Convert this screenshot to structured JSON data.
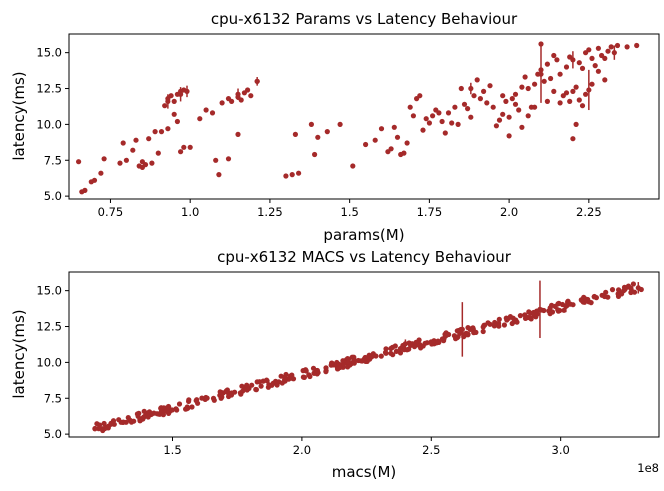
{
  "chart_data": [
    {
      "type": "scatter",
      "title": "cpu-x6132 Params vs Latency Behaviour",
      "xlabel": "params(M)",
      "ylabel": "latency(ms)",
      "xlim": [
        0.62,
        2.47
      ],
      "ylim": [
        4.8,
        16.3
      ],
      "xticks": [
        0.75,
        1.0,
        1.25,
        1.5,
        1.75,
        2.0,
        2.25
      ],
      "xtick_labels": [
        "0.75",
        "1.0",
        "1.25",
        "1.5",
        "1.75",
        "2.0",
        "2.25"
      ],
      "yticks": [
        5.0,
        7.5,
        10.0,
        12.5,
        15.0
      ],
      "ytick_labels": [
        "5.0",
        "7.5",
        "10.0",
        "12.5",
        "15.0"
      ],
      "offset_label": "",
      "grid": false,
      "marker_color": "#a52a2a",
      "points": [
        [
          0.66,
          5.3
        ],
        [
          0.67,
          5.4
        ],
        [
          0.65,
          7.4
        ],
        [
          0.69,
          6.0
        ],
        [
          0.7,
          6.1
        ],
        [
          0.72,
          6.6
        ],
        [
          0.73,
          7.6
        ],
        [
          0.78,
          7.3
        ],
        [
          0.79,
          8.7
        ],
        [
          0.8,
          7.5
        ],
        [
          0.82,
          8.2
        ],
        [
          0.83,
          8.9
        ],
        [
          0.84,
          7.1
        ],
        [
          0.85,
          7.0
        ],
        [
          0.85,
          7.4
        ],
        [
          0.86,
          7.2
        ],
        [
          0.87,
          9.0
        ],
        [
          0.88,
          7.3
        ],
        [
          0.89,
          9.5
        ],
        [
          0.9,
          8.0
        ],
        [
          0.91,
          9.5
        ],
        [
          0.92,
          11.3
        ],
        [
          0.93,
          11.8
        ],
        [
          0.94,
          12.0
        ],
        [
          0.95,
          11.6
        ],
        [
          0.96,
          12.1
        ],
        [
          0.97,
          12.3
        ],
        [
          0.98,
          12.4
        ],
        [
          0.93,
          9.7
        ],
        [
          0.95,
          10.7
        ],
        [
          0.96,
          10.2
        ],
        [
          0.97,
          8.1
        ],
        [
          0.98,
          8.4
        ],
        [
          1.0,
          8.4
        ],
        [
          1.03,
          10.4
        ],
        [
          1.05,
          11.0
        ],
        [
          1.07,
          10.8
        ],
        [
          1.08,
          7.5
        ],
        [
          1.09,
          6.5
        ],
        [
          1.1,
          11.5
        ],
        [
          1.12,
          11.8
        ],
        [
          1.13,
          11.6
        ],
        [
          1.15,
          11.9
        ],
        [
          1.16,
          11.7
        ],
        [
          1.17,
          12.2
        ],
        [
          1.18,
          12.4
        ],
        [
          1.19,
          12.0
        ],
        [
          1.15,
          9.3
        ],
        [
          1.21,
          13.0
        ],
        [
          1.12,
          7.6
        ],
        [
          1.3,
          6.4
        ],
        [
          1.32,
          6.5
        ],
        [
          1.34,
          6.6
        ],
        [
          1.33,
          9.3
        ],
        [
          1.38,
          10.0
        ],
        [
          1.39,
          7.9
        ],
        [
          1.4,
          9.1
        ],
        [
          1.43,
          9.5
        ],
        [
          1.47,
          10.0
        ],
        [
          1.51,
          7.1
        ],
        [
          1.55,
          8.6
        ],
        [
          1.58,
          8.9
        ],
        [
          1.6,
          9.7
        ],
        [
          1.62,
          8.1
        ],
        [
          1.63,
          8.3
        ],
        [
          1.64,
          9.8
        ],
        [
          1.65,
          9.1
        ],
        [
          1.66,
          7.9
        ],
        [
          1.67,
          8.0
        ],
        [
          1.68,
          8.7
        ],
        [
          1.69,
          11.2
        ],
        [
          1.7,
          10.6
        ],
        [
          1.71,
          11.8
        ],
        [
          1.72,
          12.0
        ],
        [
          1.73,
          9.6
        ],
        [
          1.74,
          10.4
        ],
        [
          1.75,
          10.1
        ],
        [
          1.76,
          10.6
        ],
        [
          1.77,
          11.0
        ],
        [
          1.78,
          10.8
        ],
        [
          1.79,
          10.2
        ],
        [
          1.8,
          9.4
        ],
        [
          1.81,
          10.8
        ],
        [
          1.82,
          10.1
        ],
        [
          1.83,
          11.2
        ],
        [
          1.84,
          10.0
        ],
        [
          1.85,
          12.5
        ],
        [
          1.86,
          11.4
        ],
        [
          1.87,
          11.1
        ],
        [
          1.88,
          10.5
        ],
        [
          1.89,
          12.0
        ],
        [
          1.9,
          13.1
        ],
        [
          1.91,
          11.8
        ],
        [
          1.92,
          12.3
        ],
        [
          1.93,
          11.5
        ],
        [
          1.94,
          12.7
        ],
        [
          1.95,
          11.2
        ],
        [
          1.96,
          9.9
        ],
        [
          1.97,
          10.3
        ],
        [
          1.98,
          12.0
        ],
        [
          1.99,
          11.6
        ],
        [
          2.0,
          10.5
        ],
        [
          2.01,
          11.8
        ],
        [
          2.02,
          12.1
        ],
        [
          2.03,
          11.0
        ],
        [
          2.04,
          12.6
        ],
        [
          2.05,
          13.3
        ],
        [
          2.06,
          12.5
        ],
        [
          2.07,
          11.2
        ],
        [
          2.08,
          12.8
        ],
        [
          2.09,
          13.5
        ],
        [
          2.1,
          13.8
        ],
        [
          2.11,
          13.0
        ],
        [
          2.12,
          14.2
        ],
        [
          2.13,
          13.2
        ],
        [
          2.14,
          12.3
        ],
        [
          2.15,
          14.5
        ],
        [
          2.16,
          13.5
        ],
        [
          2.17,
          12.0
        ],
        [
          2.18,
          14.0
        ],
        [
          2.19,
          11.6
        ],
        [
          2.2,
          12.3
        ],
        [
          2.21,
          10.0
        ],
        [
          2.22,
          14.3
        ],
        [
          2.23,
          13.9
        ],
        [
          2.24,
          15.0
        ],
        [
          2.25,
          15.2
        ],
        [
          2.26,
          14.6
        ],
        [
          2.27,
          14.1
        ],
        [
          2.28,
          15.3
        ],
        [
          2.29,
          14.8
        ],
        [
          2.3,
          14.6
        ],
        [
          2.31,
          15.1
        ],
        [
          2.32,
          15.4
        ],
        [
          2.34,
          15.5
        ],
        [
          2.37,
          15.4
        ],
        [
          2.4,
          15.5
        ],
        [
          2.24,
          12.1
        ],
        [
          2.22,
          11.7
        ],
        [
          2.21,
          12.6
        ],
        [
          2.18,
          12.2
        ],
        [
          2.16,
          11.5
        ],
        [
          2.12,
          11.6
        ],
        [
          2.08,
          11.2
        ],
        [
          2.2,
          9.0
        ],
        [
          2.06,
          10.6
        ],
        [
          2.04,
          9.8
        ],
        [
          2.02,
          11.4
        ],
        [
          2.0,
          9.2
        ],
        [
          1.98,
          10.7
        ],
        [
          2.26,
          12.8
        ],
        [
          2.28,
          13.7
        ],
        [
          2.3,
          13.1
        ],
        [
          2.14,
          14.8
        ],
        [
          2.1,
          15.6
        ],
        [
          2.19,
          14.7
        ],
        [
          2.23,
          11.3
        ]
      ],
      "errorbars": [
        [
          0.93,
          11.6,
          0.5
        ],
        [
          0.97,
          12.1,
          0.5
        ],
        [
          0.99,
          12.3,
          0.4
        ],
        [
          1.15,
          12.1,
          0.4
        ],
        [
          1.21,
          13.0,
          0.3
        ],
        [
          1.88,
          12.5,
          0.4
        ],
        [
          2.1,
          13.5,
          2.0
        ],
        [
          2.25,
          12.4,
          1.4
        ],
        [
          2.2,
          14.5,
          0.6
        ],
        [
          2.33,
          15.0,
          0.5
        ]
      ]
    },
    {
      "type": "scatter",
      "title": "cpu-x6132 MACS vs Latency Behaviour",
      "xlabel": "macs(M)",
      "ylabel": "latency(ms)",
      "xlim": [
        110000000,
        338000000
      ],
      "ylim": [
        4.8,
        16.3
      ],
      "xticks": [
        150000000,
        200000000,
        250000000,
        300000000
      ],
      "xtick_labels": [
        "1.5",
        "2.0",
        "2.5",
        "3.0"
      ],
      "yticks": [
        5.0,
        7.5,
        10.0,
        12.5,
        15.0
      ],
      "ytick_labels": [
        "5.0",
        "7.5",
        "10.0",
        "12.5",
        "15.0"
      ],
      "offset_label": "1e8",
      "grid": false,
      "marker_color": "#a52a2a",
      "trend": {
        "x0": 120000000,
        "y0": 5.4,
        "x1": 333000000,
        "y1": 15.4
      },
      "errorbars": [
        [
          262000000,
          12.3,
          1.9
        ],
        [
          292000000,
          13.7,
          2.0
        ],
        [
          330000000,
          15.2,
          0.4
        ],
        [
          302000000,
          13.9,
          0.4
        ],
        [
          240000000,
          11.3,
          0.3
        ]
      ]
    }
  ]
}
